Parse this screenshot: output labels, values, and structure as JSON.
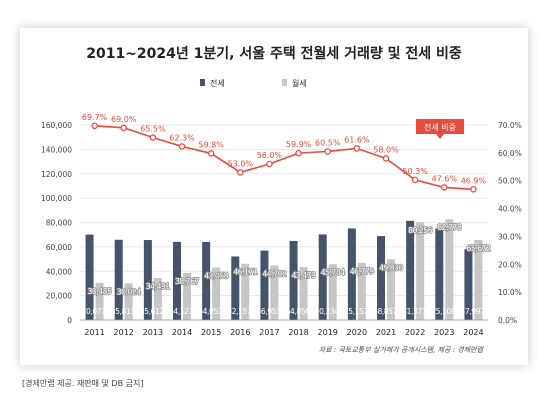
{
  "chart_data": {
    "type": "bar",
    "title": "2011~2024년 1분기, 서울 주택 전월세 거래량 및 전세 비중",
    "categories": [
      "2011",
      "2012",
      "2013",
      "2014",
      "2015",
      "2016",
      "2017",
      "2018",
      "2019",
      "2020",
      "2021",
      "2022",
      "2023",
      "2024"
    ],
    "series": [
      {
        "name": "전세",
        "type": "bar",
        "axis": "left",
        "color": "#44546a",
        "values": [
          70077,
          65813,
          65612,
          64127,
          64053,
          52157,
          56953,
          64856,
          70234,
          75157,
          68857,
          81371,
          75108,
          57997
        ],
        "labels": [
          "70,077",
          "65,813",
          "65,612",
          "64,127",
          "64,053",
          "52,157",
          "56,953",
          "64,856",
          "70,234",
          "75,157",
          "68,857",
          "81,371",
          "75,108",
          "57,997"
        ]
      },
      {
        "name": "월세",
        "type": "bar",
        "axis": "left",
        "color": "#c6c6c6",
        "values": [
          30485,
          30024,
          34491,
          38767,
          43058,
          46171,
          44702,
          43479,
          45784,
          46779,
          49830,
          80256,
          82778,
          65672
        ],
        "labels": [
          "30,485",
          "30,024",
          "34,491",
          "38,767",
          "43,058",
          "46,171",
          "44,702",
          "43,479",
          "45,784",
          "46,779",
          "49,830",
          "80,256",
          "82,778",
          "65,672"
        ]
      },
      {
        "name": "전세 비중",
        "type": "line",
        "axis": "right",
        "color": "#e84c3d",
        "values": [
          69.7,
          69.0,
          65.5,
          62.3,
          59.8,
          53.0,
          56.0,
          59.9,
          60.5,
          61.6,
          58.0,
          50.3,
          47.6,
          46.9
        ],
        "labels": [
          "69.7%",
          "69.0%",
          "65.5%",
          "62.3%",
          "59.8%",
          "53.0%",
          "56.0%",
          "59.9%",
          "60.5%",
          "61.6%",
          "58.0%",
          "50.3%",
          "47.6%",
          "46.9%"
        ]
      }
    ],
    "y_left": {
      "min": 0,
      "max": 160000,
      "ticks": [
        "0",
        "20,000",
        "40,000",
        "60,000",
        "80,000",
        "100,000",
        "120,000",
        "140,000",
        "160,000"
      ]
    },
    "y_right": {
      "min": 0,
      "max": 70,
      "ticks": [
        "0.0%",
        "10.0%",
        "20.0%",
        "30.0%",
        "40.0%",
        "50.0%",
        "60.0%",
        "70.0%"
      ]
    },
    "grid": true,
    "legend_position": "top-center",
    "callout": "전세 비중",
    "source": "자료 : 국토교통부 실거래가 공개시스템, 제공 : 경제만랩"
  },
  "footer": "[경제만랩 제공. 재판매 및 DB 금지]"
}
